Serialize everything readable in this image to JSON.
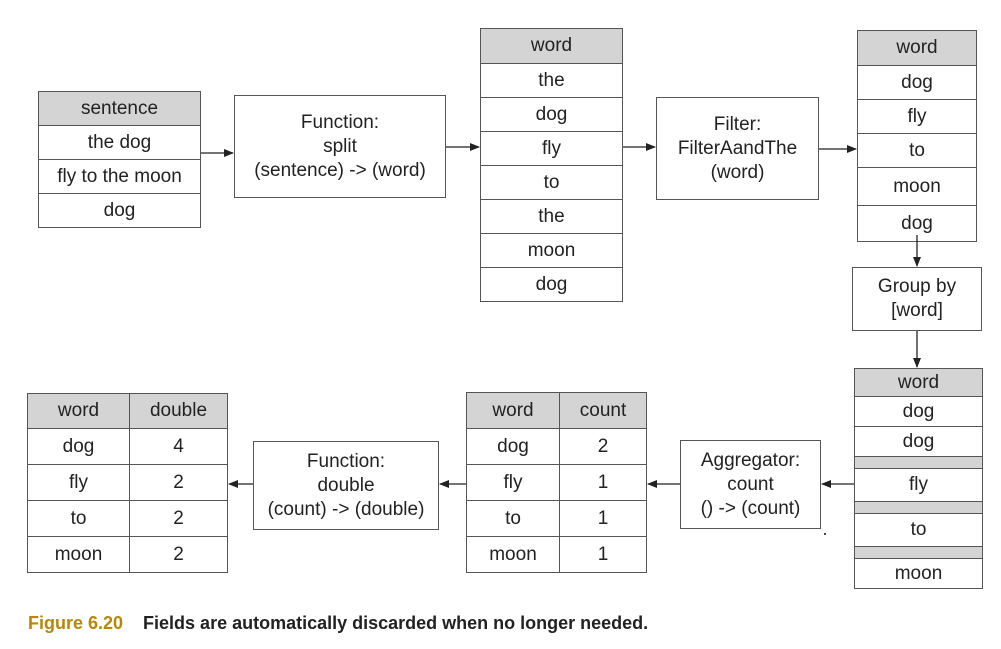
{
  "sentence_table": {
    "header": "sentence",
    "rows": [
      "the dog",
      "fly to the moon",
      "dog"
    ]
  },
  "split_function": {
    "line1": "Function:",
    "line2": "split",
    "line3": "(sentence) -> (word)"
  },
  "word_table_1": {
    "header": "word",
    "rows": [
      "the",
      "dog",
      "fly",
      "to",
      "the",
      "moon",
      "dog"
    ]
  },
  "filter_box": {
    "line1": "Filter:",
    "line2": "FilterAandThe",
    "line3": "(word)"
  },
  "word_table_2": {
    "header": "word",
    "rows": [
      "dog",
      "fly",
      "to",
      "moon",
      "dog"
    ]
  },
  "group_by_box": {
    "line1": "Group by",
    "line2": "[word]"
  },
  "grouped_table": {
    "header": "word",
    "rows": [
      "dog",
      "dog",
      "fly",
      "to",
      "moon"
    ]
  },
  "aggregator_box": {
    "line1": "Aggregator:",
    "line2": "count",
    "line3": "() -> (count)"
  },
  "count_table": {
    "headers": [
      "word",
      "count"
    ],
    "rows": [
      [
        "dog",
        "2"
      ],
      [
        "fly",
        "1"
      ],
      [
        "to",
        "1"
      ],
      [
        "moon",
        "1"
      ]
    ]
  },
  "double_function": {
    "line1": "Function:",
    "line2": "double",
    "line3": "(count) -> (double)"
  },
  "double_table": {
    "headers": [
      "word",
      "double"
    ],
    "rows": [
      [
        "dog",
        "4"
      ],
      [
        "fly",
        "2"
      ],
      [
        "to",
        "2"
      ],
      [
        "moon",
        "2"
      ]
    ]
  },
  "caption": {
    "number": "Figure 6.20",
    "text": "Fields are automatically discarded when no longer needed."
  },
  "colors": {
    "header_fill": "#d4d4d4",
    "caption_number": "#b8860b",
    "line": "#555555"
  }
}
